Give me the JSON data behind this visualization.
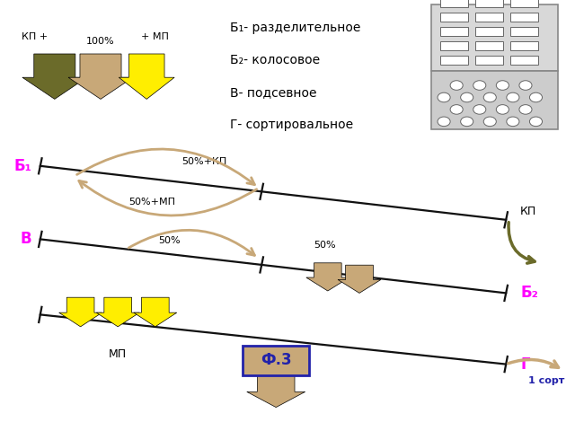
{
  "title_lines": [
    "Б₁- разделительное",
    "Б₂- колосовое",
    "В- подсевное",
    "Г- сортировальное"
  ],
  "bg_color": "#ffffff",
  "label_B1": "Б₁",
  "label_B2": "Б₂",
  "label_V": "В",
  "label_G": "Г",
  "label_KP_plus": "КП +",
  "label_plus_MP": "+ МП",
  "label_100": "100%",
  "label_50KP": "50%+КП",
  "label_50MP": "50%+МП",
  "label_50a": "50%",
  "label_50b": "50%",
  "label_KP": "КП",
  "label_MP": "МП",
  "label_FZ": "Ф.3",
  "label_1sort": "1 сорт",
  "color_grain": "#c8a878",
  "color_olive": "#6b6b2a",
  "color_yellow": "#ffee00",
  "color_magenta": "#ff00ff",
  "color_blue": "#2222aa",
  "color_line": "#111111",
  "color_sieve_bg1": "#d8d8d8",
  "color_sieve_bg2": "#cccccc",
  "color_sieve_edge": "#888888",
  "color_hole": "#ffffff"
}
